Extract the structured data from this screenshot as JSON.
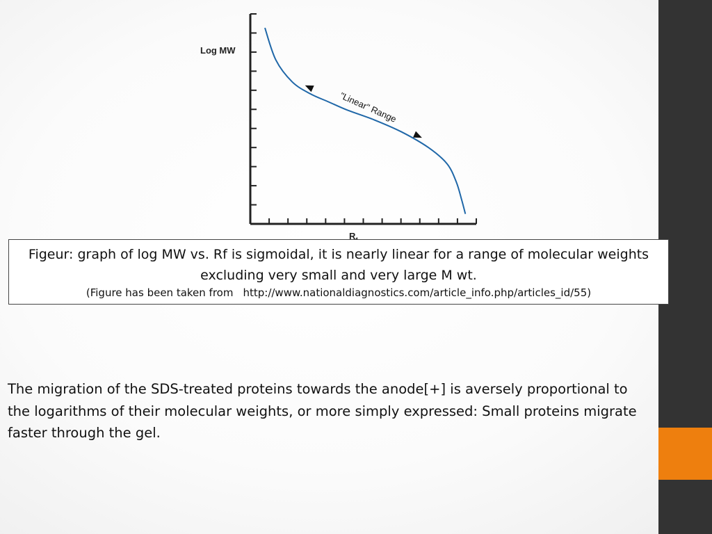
{
  "chart_data": {
    "type": "line",
    "ylabel": "Log MW",
    "xlabel_main": "R",
    "xlabel_sub": "f",
    "annotation": "\"Linear\" Range",
    "series_color": "#1f67a8",
    "curve": {
      "x": [
        0.0,
        0.6,
        1.5,
        2.5,
        3.5,
        4.5,
        6.0,
        7.5,
        9.0,
        10.0,
        10.5,
        10.8,
        11.0
      ],
      "y": [
        9.8,
        8.2,
        7.1,
        6.5,
        6.1,
        5.7,
        5.2,
        4.6,
        3.8,
        3.0,
        2.1,
        1.2,
        0.5
      ]
    },
    "annotation_x_range": [
      2.6,
      8.6
    ],
    "xlim": [
      -0.8,
      11.6
    ],
    "ylim": [
      0,
      10.5
    ],
    "x_tick_count": 12,
    "y_tick_count": 11,
    "grid": false,
    "legend": "none"
  },
  "caption": {
    "line1": "Figeur: graph of log MW vs. Rf is sigmoidal, it is nearly linear for a range of molecular weights excluding very small and very large M wt.",
    "source_prefix": "(Figure has been taken from",
    "source_url": "http://www.nationaldiagnostics.com/article_info.php/articles_id/55)"
  },
  "body_text": "The migration of the SDS-treated proteins towards the anode[+] is aversely proportional to the logarithms of their molecular weights, or more simply expressed: Small proteins migrate faster through the gel.",
  "colors": {
    "sidebar": "#333333",
    "accent": "#ee7f0e"
  }
}
